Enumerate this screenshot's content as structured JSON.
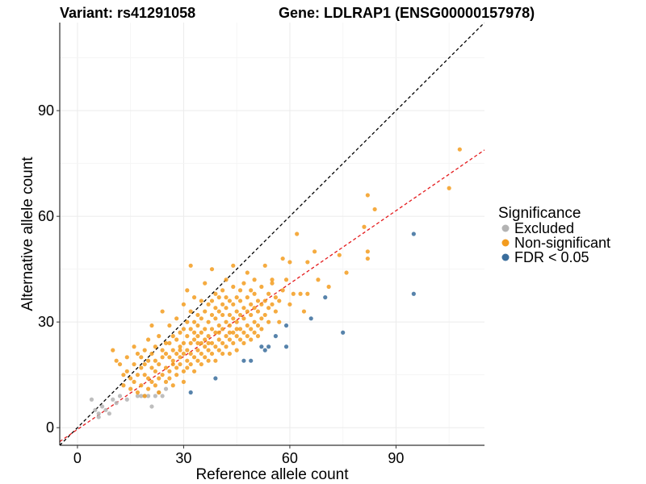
{
  "chart_data": {
    "type": "scatter",
    "title_left": "Variant: rs41291058",
    "title_right": "Gene: LDLRAP1 (ENSG00000157978)",
    "xlabel": "Reference allele count",
    "ylabel": "Alternative allele count",
    "xlim": [
      -5,
      115
    ],
    "ylim": [
      -5,
      115
    ],
    "x_ticks": [
      0,
      30,
      60,
      90
    ],
    "y_ticks": [
      0,
      30,
      60,
      90
    ],
    "grid": true,
    "legend": {
      "title": "Significance",
      "placement": "right",
      "entries": [
        {
          "label": "Excluded",
          "color": "#b3b3b3"
        },
        {
          "label": "Non-significant",
          "color": "#f39c1f"
        },
        {
          "label": "FDR < 0.05",
          "color": "#3a6d9c"
        }
      ]
    },
    "reference_lines": [
      {
        "name": "identity",
        "slope": 1,
        "intercept": 0,
        "color": "#000000",
        "dash": true
      },
      {
        "name": "fit",
        "slope": 0.69,
        "intercept": -0.5,
        "color": "#e41a1c",
        "dash": true
      }
    ],
    "series": [
      {
        "name": "Excluded",
        "color": "#b3b3b3",
        "points": [
          [
            4,
            8
          ],
          [
            5,
            5
          ],
          [
            6,
            4
          ],
          [
            6,
            3
          ],
          [
            7,
            6
          ],
          [
            8,
            5
          ],
          [
            9,
            4
          ],
          [
            10,
            8
          ],
          [
            11,
            7
          ],
          [
            12,
            9
          ],
          [
            14,
            8
          ],
          [
            17,
            9
          ],
          [
            18,
            9
          ],
          [
            19,
            9
          ],
          [
            20,
            9
          ],
          [
            21,
            6
          ],
          [
            22,
            9
          ],
          [
            23,
            10
          ],
          [
            24,
            9
          ],
          [
            25,
            11
          ]
        ]
      },
      {
        "name": "FDR < 0.05",
        "color": "#3a6d9c",
        "points": [
          [
            32,
            10
          ],
          [
            39,
            14
          ],
          [
            47,
            19
          ],
          [
            49,
            19
          ],
          [
            52,
            23
          ],
          [
            53,
            22
          ],
          [
            54,
            23
          ],
          [
            56,
            26
          ],
          [
            59,
            23
          ],
          [
            59,
            29
          ],
          [
            66,
            31
          ],
          [
            70,
            37
          ],
          [
            75,
            27
          ],
          [
            95,
            55
          ],
          [
            95,
            38
          ]
        ]
      },
      {
        "name": "Non-significant",
        "color": "#f39c1f",
        "points": [
          [
            10,
            22
          ],
          [
            11,
            19
          ],
          [
            12,
            18
          ],
          [
            13,
            15
          ],
          [
            13,
            12
          ],
          [
            14,
            16
          ],
          [
            14,
            20
          ],
          [
            15,
            14
          ],
          [
            15,
            11
          ],
          [
            16,
            18
          ],
          [
            16,
            23
          ],
          [
            16,
            13
          ],
          [
            17,
            15
          ],
          [
            17,
            21
          ],
          [
            17,
            10
          ],
          [
            18,
            17
          ],
          [
            18,
            20
          ],
          [
            18,
            12
          ],
          [
            19,
            15
          ],
          [
            19,
            22
          ],
          [
            19,
            9
          ],
          [
            19,
            18
          ],
          [
            20,
            14
          ],
          [
            20,
            25
          ],
          [
            20,
            11
          ],
          [
            20,
            19
          ],
          [
            21,
            13
          ],
          [
            21,
            17
          ],
          [
            21,
            29
          ],
          [
            21,
            21
          ],
          [
            22,
            16
          ],
          [
            22,
            12
          ],
          [
            22,
            19
          ],
          [
            22,
            23
          ],
          [
            23,
            14
          ],
          [
            23,
            18
          ],
          [
            23,
            26
          ],
          [
            23,
            10
          ],
          [
            24,
            15
          ],
          [
            24,
            20
          ],
          [
            24,
            22
          ],
          [
            24,
            33
          ],
          [
            25,
            17
          ],
          [
            25,
            13
          ],
          [
            25,
            21
          ],
          [
            25,
            24
          ],
          [
            26,
            16
          ],
          [
            26,
            20
          ],
          [
            26,
            14
          ],
          [
            26,
            24
          ],
          [
            26,
            29
          ],
          [
            27,
            18
          ],
          [
            27,
            22
          ],
          [
            27,
            12
          ],
          [
            27,
            26
          ],
          [
            27,
            19
          ],
          [
            28,
            21
          ],
          [
            28,
            17
          ],
          [
            28,
            25
          ],
          [
            28,
            15
          ],
          [
            28,
            31
          ],
          [
            29,
            20
          ],
          [
            29,
            23
          ],
          [
            29,
            18
          ],
          [
            29,
            27
          ],
          [
            29,
            22
          ],
          [
            30,
            16
          ],
          [
            30,
            24
          ],
          [
            30,
            21
          ],
          [
            30,
            28
          ],
          [
            30,
            13
          ],
          [
            30,
            35
          ],
          [
            31,
            19
          ],
          [
            31,
            22
          ],
          [
            31,
            26
          ],
          [
            31,
            30
          ],
          [
            31,
            17
          ],
          [
            31,
            39
          ],
          [
            32,
            21
          ],
          [
            32,
            24
          ],
          [
            32,
            18
          ],
          [
            32,
            28
          ],
          [
            32,
            33
          ],
          [
            32,
            46
          ],
          [
            33,
            20
          ],
          [
            33,
            25
          ],
          [
            33,
            30
          ],
          [
            33,
            16
          ],
          [
            33,
            27
          ],
          [
            33,
            37
          ],
          [
            34,
            22
          ],
          [
            34,
            26
          ],
          [
            34,
            29
          ],
          [
            34,
            19
          ],
          [
            34,
            32
          ],
          [
            34,
            24
          ],
          [
            35,
            21
          ],
          [
            35,
            27
          ],
          [
            35,
            24
          ],
          [
            35,
            31
          ],
          [
            35,
            18
          ],
          [
            35,
            36
          ],
          [
            36,
            23
          ],
          [
            36,
            28
          ],
          [
            36,
            25
          ],
          [
            36,
            33
          ],
          [
            36,
            20
          ],
          [
            36,
            41
          ],
          [
            37,
            22
          ],
          [
            37,
            26
          ],
          [
            37,
            30
          ],
          [
            37,
            35
          ],
          [
            37,
            19
          ],
          [
            37,
            24
          ],
          [
            38,
            24
          ],
          [
            38,
            28
          ],
          [
            38,
            32
          ],
          [
            38,
            21
          ],
          [
            38,
            36
          ],
          [
            38,
            45
          ],
          [
            39,
            23
          ],
          [
            39,
            27
          ],
          [
            39,
            31
          ],
          [
            39,
            34
          ],
          [
            39,
            19
          ],
          [
            39,
            38
          ],
          [
            40,
            25
          ],
          [
            40,
            29
          ],
          [
            40,
            22
          ],
          [
            40,
            33
          ],
          [
            40,
            37
          ],
          [
            40,
            27
          ],
          [
            41,
            24
          ],
          [
            41,
            28
          ],
          [
            41,
            32
          ],
          [
            41,
            35
          ],
          [
            41,
            21
          ],
          [
            41,
            39
          ],
          [
            42,
            26
          ],
          [
            42,
            30
          ],
          [
            42,
            34
          ],
          [
            42,
            23
          ],
          [
            42,
            37
          ],
          [
            42,
            42
          ],
          [
            43,
            25
          ],
          [
            43,
            29
          ],
          [
            43,
            32
          ],
          [
            43,
            36
          ],
          [
            43,
            21
          ],
          [
            43,
            27
          ],
          [
            44,
            27
          ],
          [
            44,
            31
          ],
          [
            44,
            35
          ],
          [
            44,
            24
          ],
          [
            44,
            40
          ],
          [
            44,
            46
          ],
          [
            45,
            26
          ],
          [
            45,
            30
          ],
          [
            45,
            33
          ],
          [
            45,
            37
          ],
          [
            45,
            22
          ],
          [
            45,
            28
          ],
          [
            46,
            28
          ],
          [
            46,
            32
          ],
          [
            46,
            25
          ],
          [
            46,
            36
          ],
          [
            46,
            39
          ],
          [
            47,
            27
          ],
          [
            47,
            31
          ],
          [
            47,
            34
          ],
          [
            47,
            24
          ],
          [
            47,
            41
          ],
          [
            48,
            29
          ],
          [
            48,
            33
          ],
          [
            48,
            26
          ],
          [
            48,
            37
          ],
          [
            48,
            44
          ],
          [
            49,
            28
          ],
          [
            49,
            32
          ],
          [
            49,
            35
          ],
          [
            49,
            25
          ],
          [
            49,
            39
          ],
          [
            50,
            30
          ],
          [
            50,
            34
          ],
          [
            50,
            27
          ],
          [
            50,
            38
          ],
          [
            50,
            42
          ],
          [
            51,
            29
          ],
          [
            51,
            33
          ],
          [
            51,
            36
          ],
          [
            51,
            26
          ],
          [
            52,
            31
          ],
          [
            52,
            35
          ],
          [
            52,
            28
          ],
          [
            52,
            40
          ],
          [
            53,
            32
          ],
          [
            53,
            36
          ],
          [
            53,
            46
          ],
          [
            54,
            34
          ],
          [
            54,
            38
          ],
          [
            54,
            30
          ],
          [
            55,
            35
          ],
          [
            55,
            41
          ],
          [
            55,
            42
          ],
          [
            56,
            33
          ],
          [
            56,
            37
          ],
          [
            57,
            36
          ],
          [
            57,
            30
          ],
          [
            58,
            48
          ],
          [
            58,
            39
          ],
          [
            59,
            42
          ],
          [
            60,
            47
          ],
          [
            60,
            35
          ],
          [
            61,
            38
          ],
          [
            62,
            55
          ],
          [
            63,
            38
          ],
          [
            64,
            33
          ],
          [
            65,
            38
          ],
          [
            65,
            47
          ],
          [
            67,
            50
          ],
          [
            68,
            42
          ],
          [
            71,
            40
          ],
          [
            74,
            49
          ],
          [
            76,
            44
          ],
          [
            81,
            57
          ],
          [
            82,
            50
          ],
          [
            82,
            48
          ],
          [
            82,
            66
          ],
          [
            84,
            62
          ],
          [
            105,
            68
          ],
          [
            108,
            79
          ]
        ]
      }
    ]
  }
}
